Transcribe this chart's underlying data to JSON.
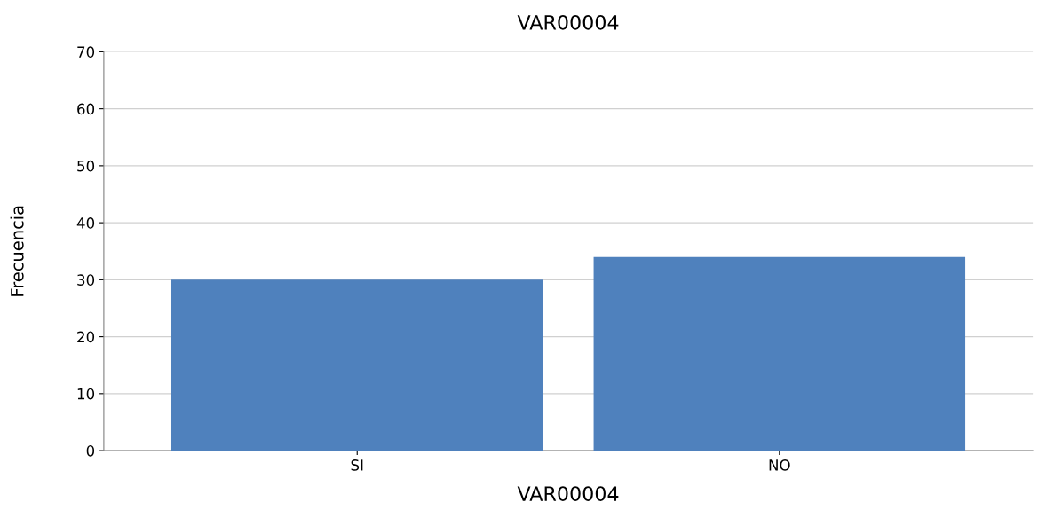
{
  "chart_data": {
    "type": "bar",
    "title": "VAR00004",
    "xlabel": "VAR00004",
    "ylabel": "Frecuencia",
    "categories": [
      "SI",
      "NO"
    ],
    "values": [
      30,
      34
    ],
    "color": "#4f81bd",
    "ylim": [
      0,
      70
    ],
    "yticks": [
      0,
      10,
      20,
      30,
      40,
      50,
      60,
      70
    ],
    "grid": "y"
  }
}
